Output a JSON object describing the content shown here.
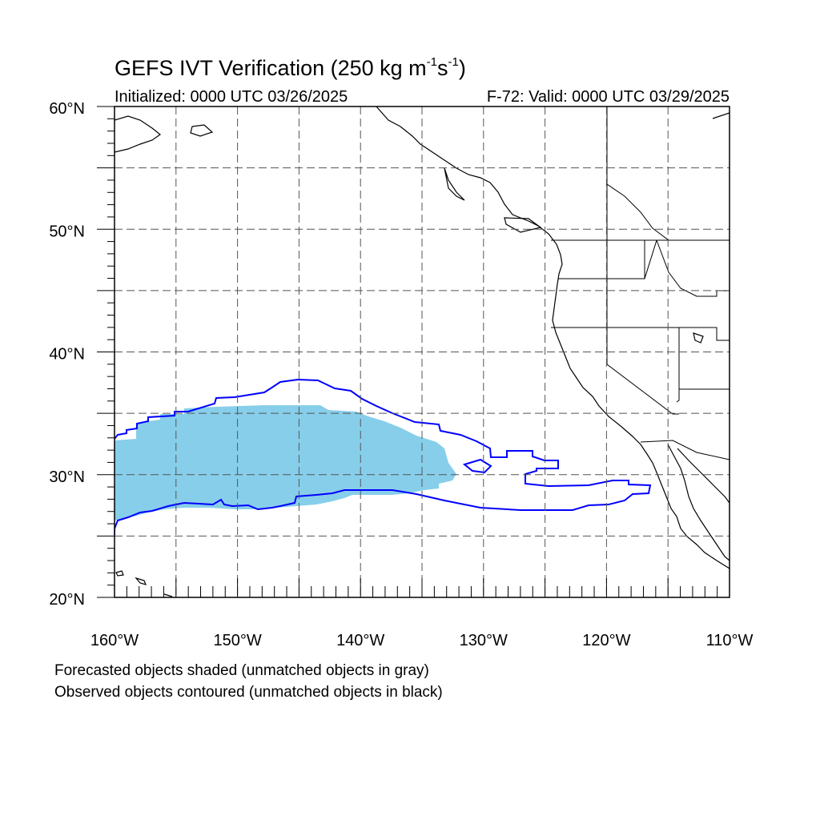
{
  "title": {
    "main": "GEFS IVT Verification (250 kg m",
    "sup1": "-1",
    "mid": "s",
    "sup2": "-1",
    "end": ")"
  },
  "initialized": "Initialized: 0000 UTC 03/26/2025",
  "valid": "F-72: Valid: 0000 UTC 03/29/2025",
  "notes": [
    "Forecasted objects shaded (unmatched objects in gray)",
    "Observed objects contoured (unmatched objects in black)"
  ],
  "map": {
    "lon_range": [
      -160,
      -110
    ],
    "lat_range": [
      20,
      60
    ],
    "lon_labels": [
      "160°W",
      "150°W",
      "140°W",
      "130°W",
      "120°W",
      "110°W"
    ],
    "lat_labels": [
      "20°N",
      "30°N",
      "40°N",
      "50°N",
      "60°N"
    ],
    "grid": "dashed every 5°",
    "colors": {
      "forecast_fill": "#87ceea",
      "observed_contour": "#0000ff",
      "coastline": "#000000",
      "grid": "#555555"
    }
  }
}
